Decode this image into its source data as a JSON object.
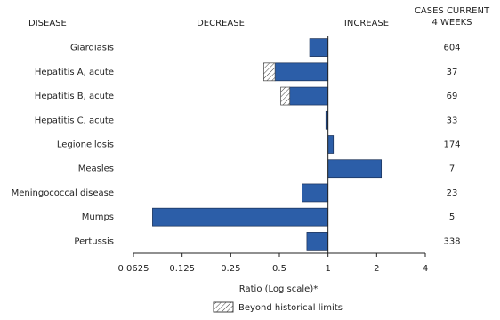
{
  "chart_data": {
    "type": "bar",
    "orientation": "horizontal",
    "log_scale": true,
    "headers": {
      "disease": "DISEASE",
      "decrease": "DECREASE",
      "increase": "INCREASE",
      "cases": [
        "CASES CURRENT",
        "4 WEEKS"
      ]
    },
    "categories": [
      "Giardiasis",
      "Hepatitis A, acute",
      "Hepatitis B, acute",
      "Hepatitis C, acute",
      "Legionellosis",
      "Measles",
      "Meningococcal disease",
      "Mumps",
      "Pertussis"
    ],
    "values": [
      0.77,
      0.4,
      0.51,
      0.97,
      1.08,
      2.14,
      0.69,
      0.082,
      0.74
    ],
    "limits": [
      null,
      0.47,
      0.58,
      null,
      null,
      null,
      null,
      null,
      null
    ],
    "cases": [
      604,
      37,
      69,
      33,
      174,
      7,
      23,
      5,
      338
    ],
    "color": "#2c5ea8",
    "xlim": [
      0.0625,
      4
    ],
    "xticks": [
      0.0625,
      0.125,
      0.25,
      0.5,
      1,
      2,
      4
    ],
    "xlabel": "Ratio (Log scale)*",
    "legend": "Beyond historical limits"
  }
}
